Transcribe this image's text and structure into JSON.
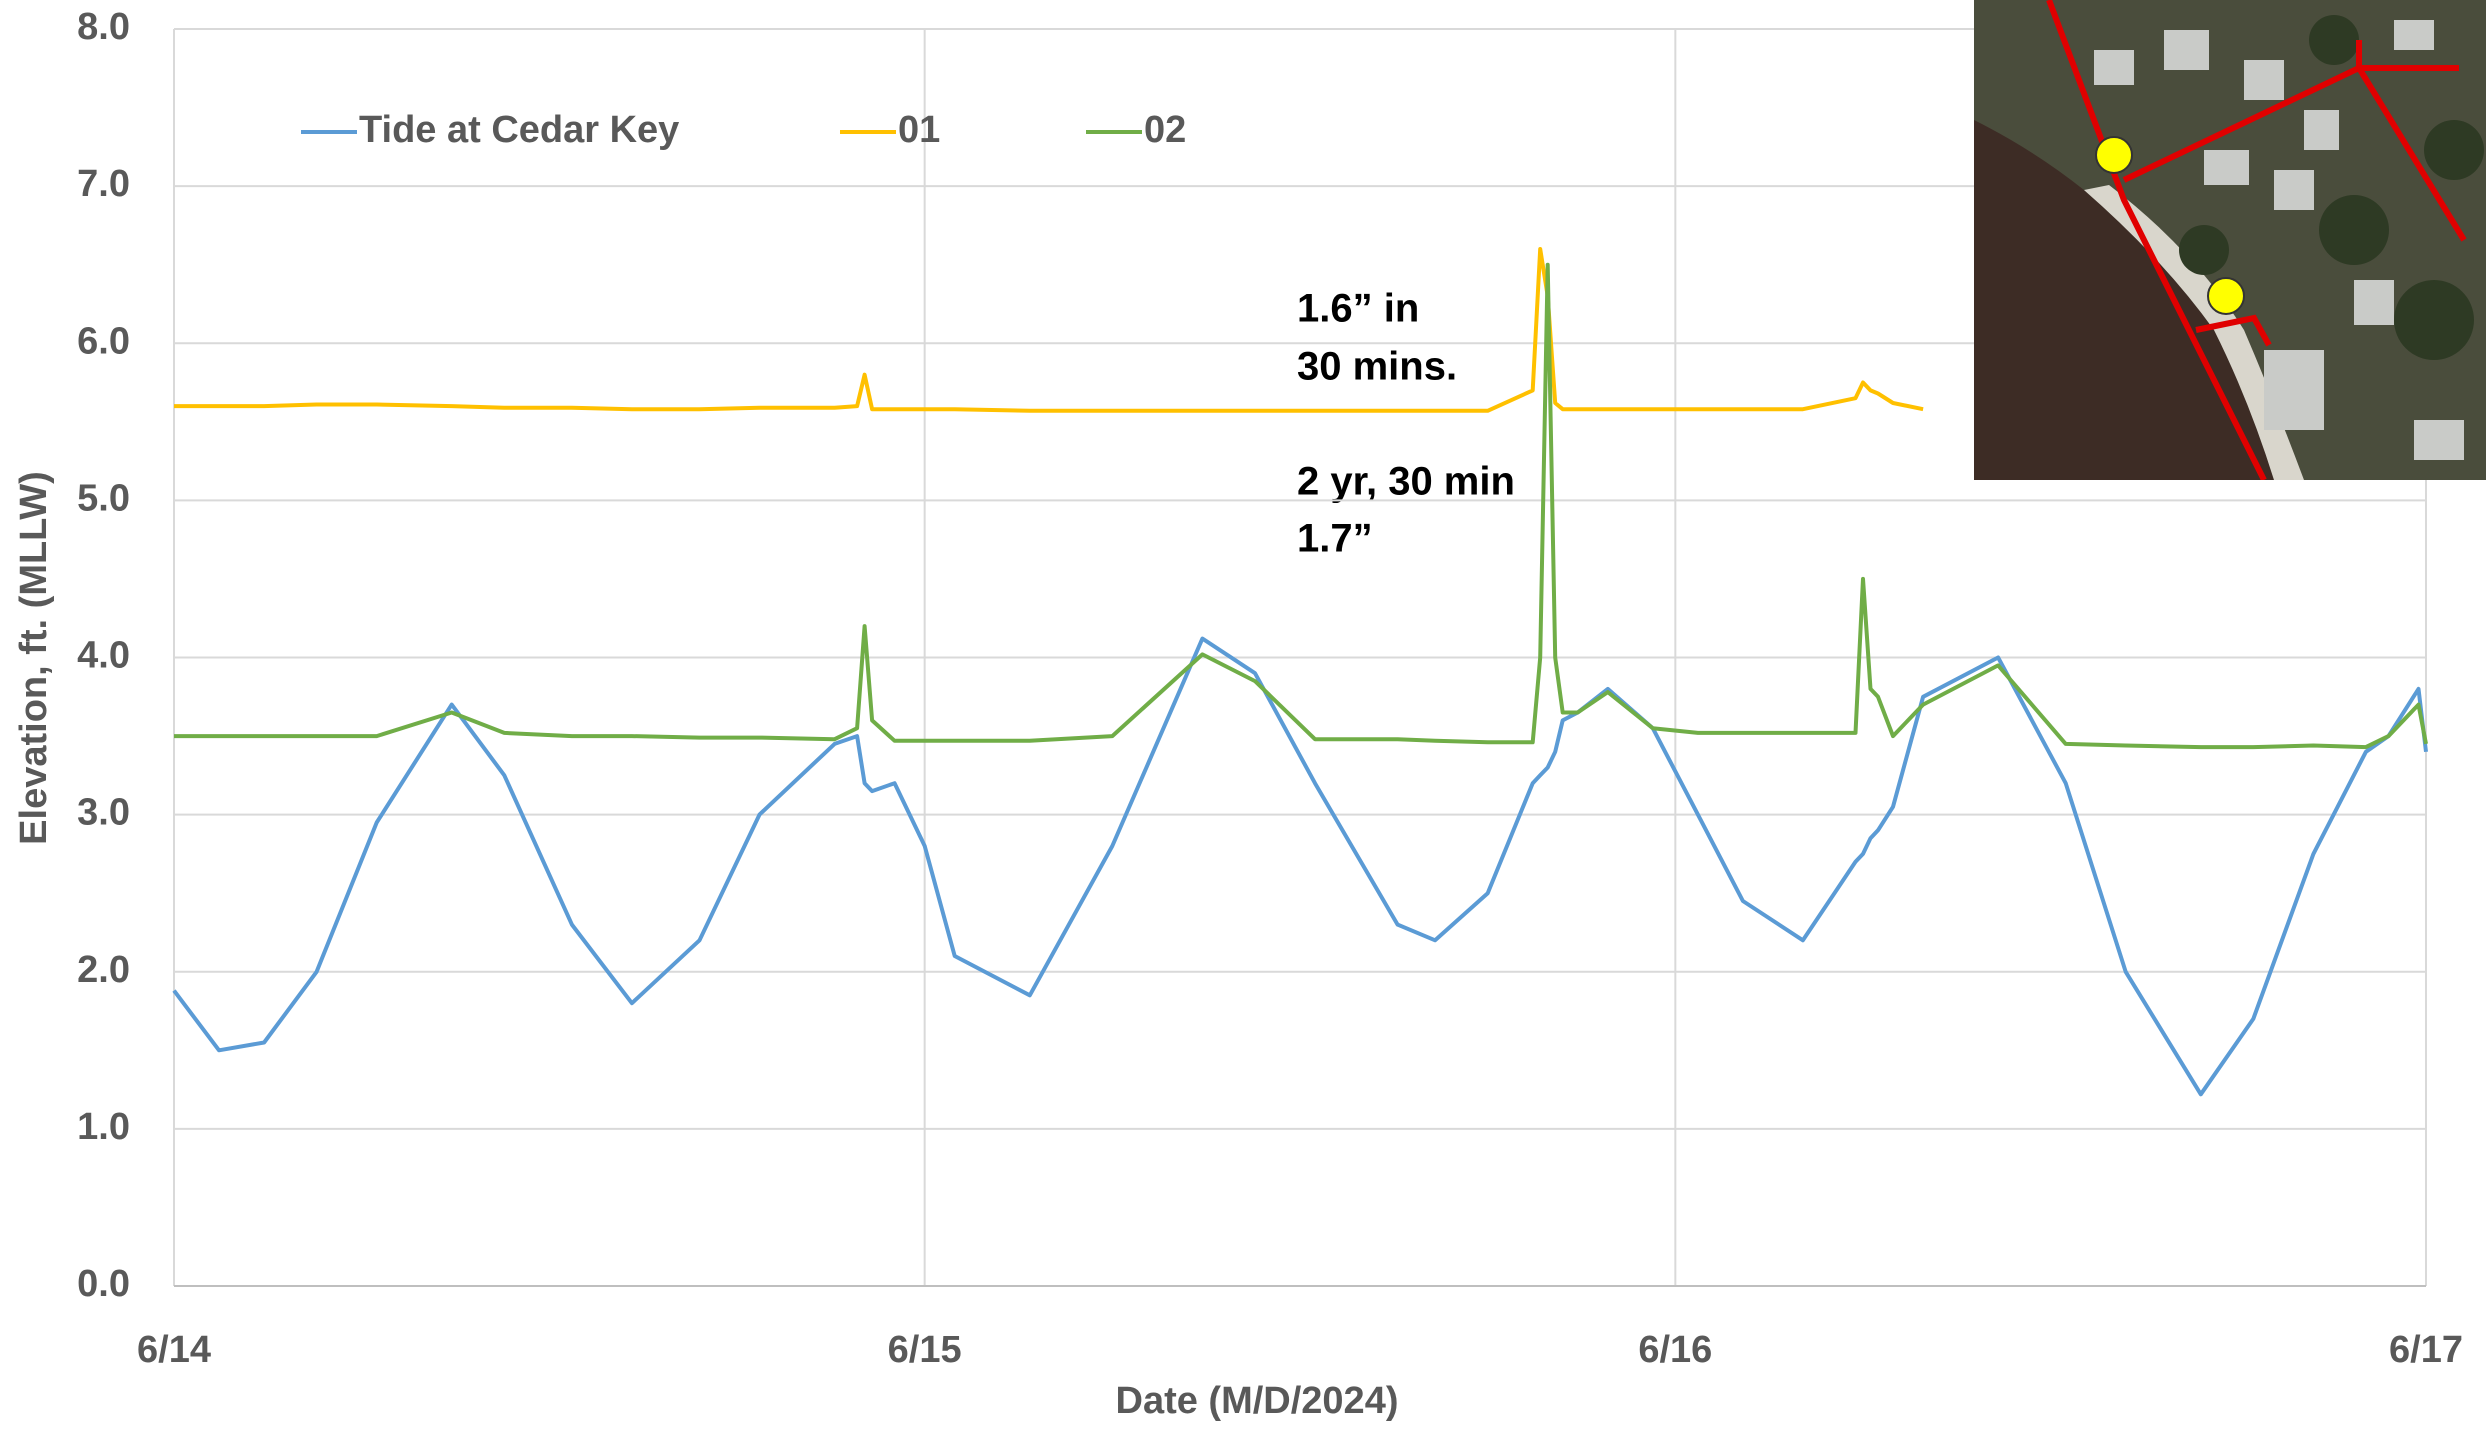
{
  "chart_data": {
    "type": "line",
    "x_label": "Date (M/D/2024)",
    "y_label": "Elevation, ft. (MLLW)",
    "annotations": [
      "1.6” in",
      "30 mins.",
      "2 yr, 30 min",
      "1.7”"
    ],
    "xlim": [
      0,
      3
    ],
    "xticks": [
      {
        "value": 0,
        "label": "6/14"
      },
      {
        "value": 1,
        "label": "6/15"
      },
      {
        "value": 2,
        "label": "6/16"
      },
      {
        "value": 3,
        "label": "6/17"
      }
    ],
    "ylim": [
      0,
      8
    ],
    "yticks": [
      {
        "value": 0,
        "label": "0.0"
      },
      {
        "value": 1,
        "label": "1.0"
      },
      {
        "value": 2,
        "label": "2.0"
      },
      {
        "value": 3,
        "label": "3.0"
      },
      {
        "value": 4,
        "label": "4.0"
      },
      {
        "value": 5,
        "label": "5.0"
      },
      {
        "value": 6,
        "label": "6.0"
      },
      {
        "value": 7,
        "label": "7.0"
      },
      {
        "value": 8,
        "label": "8.0"
      }
    ],
    "grid": true,
    "x": [
      0,
      0.06,
      0.12,
      0.19,
      0.27,
      0.37,
      0.44,
      0.53,
      0.61,
      0.7,
      0.78,
      0.88,
      0.91,
      0.92,
      0.93,
      0.96,
      1.0,
      1.04,
      1.14,
      1.25,
      1.37,
      1.44,
      1.52,
      1.63,
      1.68,
      1.75,
      1.81,
      1.82,
      1.83,
      1.84,
      1.85,
      1.87,
      1.91,
      1.97,
      2.03,
      2.09,
      2.17,
      2.24,
      2.25,
      2.26,
      2.27,
      2.29,
      2.33,
      2.43,
      2.52,
      2.6,
      2.7,
      2.77,
      2.85,
      2.92,
      2.95,
      2.99,
      3.0
    ],
    "series": [
      {
        "name": "Tide at Cedar Key",
        "color": "#5b9bd5",
        "values": [
          1.88,
          1.5,
          1.55,
          2.0,
          2.95,
          3.7,
          3.25,
          2.3,
          1.8,
          2.2,
          3.0,
          3.45,
          3.5,
          3.2,
          3.15,
          3.2,
          2.8,
          2.1,
          1.85,
          2.8,
          4.12,
          3.9,
          3.2,
          2.3,
          2.2,
          2.5,
          3.2,
          3.25,
          3.3,
          3.4,
          3.6,
          3.65,
          3.8,
          3.55,
          3.0,
          2.45,
          2.2,
          2.7,
          2.75,
          2.85,
          2.9,
          3.05,
          3.75,
          4.0,
          3.2,
          2.0,
          1.22,
          1.7,
          2.75,
          3.4,
          3.5,
          3.8,
          3.4
        ]
      },
      {
        "name": "01",
        "color": "#ffc000",
        "values": [
          5.6,
          5.6,
          5.6,
          5.61,
          5.61,
          5.6,
          5.59,
          5.59,
          5.58,
          5.58,
          5.59,
          5.59,
          5.6,
          5.8,
          5.58,
          5.58,
          5.58,
          5.58,
          5.57,
          5.57,
          5.57,
          5.57,
          5.57,
          5.57,
          5.57,
          5.57,
          5.7,
          6.6,
          6.3,
          5.62,
          5.58,
          5.58,
          5.58,
          5.58,
          5.58,
          5.58,
          5.58,
          5.65,
          5.75,
          5.7,
          5.68,
          5.62,
          5.58,
          null,
          null,
          null,
          null,
          null,
          null,
          null,
          null,
          null,
          null
        ]
      },
      {
        "name": "02",
        "color": "#70ad47",
        "values": [
          3.5,
          3.5,
          3.5,
          3.5,
          3.5,
          3.65,
          3.52,
          3.5,
          3.5,
          3.49,
          3.49,
          3.48,
          3.55,
          4.2,
          3.6,
          3.47,
          3.47,
          3.47,
          3.47,
          3.5,
          4.02,
          3.85,
          3.48,
          3.48,
          3.47,
          3.46,
          3.46,
          4.0,
          6.5,
          4.0,
          3.65,
          3.65,
          3.78,
          3.55,
          3.52,
          3.52,
          3.52,
          3.52,
          4.5,
          3.8,
          3.75,
          3.5,
          3.7,
          3.95,
          3.45,
          3.44,
          3.43,
          3.43,
          3.44,
          3.43,
          3.5,
          3.7,
          3.45
        ]
      }
    ]
  }
}
